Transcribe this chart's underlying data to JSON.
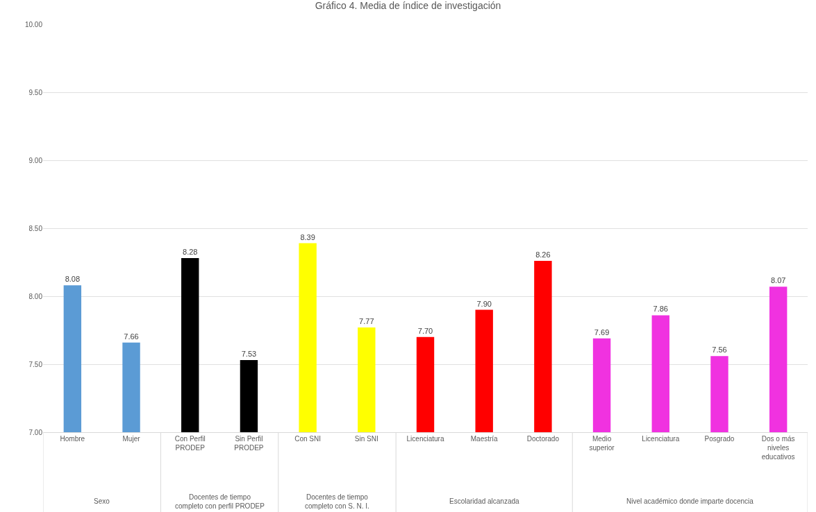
{
  "chart_data": {
    "type": "bar",
    "title": "Gráfico 4. Media de índice de investigación",
    "categories": [
      "Hombre",
      "Mujer",
      "Con Perfil PRODEP",
      "Sin Perfil PRODEP",
      "Con SNI",
      "Sin SNI",
      "Licenciatura",
      "Maestría",
      "Doctorado",
      "Medio superior",
      "Licenciatura",
      "Posgrado",
      "Dos o más niveles educativos"
    ],
    "values": [
      8.08,
      7.66,
      8.28,
      7.53,
      8.39,
      7.77,
      7.7,
      7.9,
      8.26,
      7.69,
      7.86,
      7.56,
      8.07
    ],
    "value_labels": [
      "8.08",
      "7.66",
      "8.28",
      "7.53",
      "8.39",
      "7.77",
      "7.70",
      "7.90",
      "8.26",
      "7.69",
      "7.86",
      "7.56",
      "8.07"
    ],
    "colors": [
      "#5b9bd5",
      "#5b9bd5",
      "#000000",
      "#000000",
      "#ffff00",
      "#ffff00",
      "#ff0000",
      "#ff0000",
      "#ff0000",
      "#f032e0",
      "#f032e0",
      "#f032e0",
      "#f032e0"
    ],
    "annotations": [
      "Sexo",
      "Docentes de tiempo completo con perfil PRODEP",
      "Docentes de tiempo completo con S. N. I.",
      "Escolaridad alcanzada",
      "Nivel académico donde imparte docencia"
    ],
    "ylim": [
      7,
      10
    ],
    "yticks": [
      {
        "value": 7,
        "label": "7.00"
      },
      {
        "value": 7.5,
        "label": "7.50"
      },
      {
        "value": 8,
        "label": "8.00"
      },
      {
        "value": 8.5,
        "label": "8.50"
      },
      {
        "value": 9,
        "label": "9.00"
      },
      {
        "value": 9.5,
        "label": "9.50"
      },
      {
        "value": 10,
        "label": "10.00"
      }
    ],
    "grid": "y"
  }
}
